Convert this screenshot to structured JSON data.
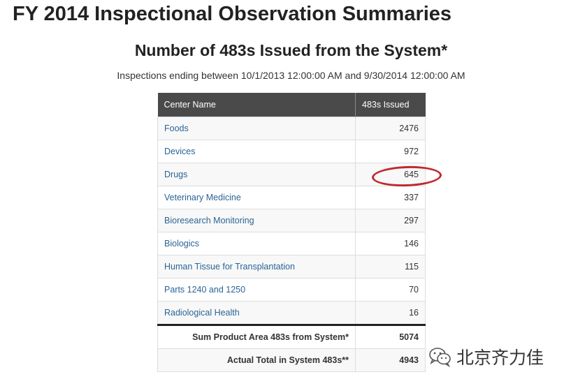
{
  "page": {
    "title": "FY 2014 Inspectional Observation Summaries"
  },
  "report": {
    "title": "Number of 483s Issued from the System*",
    "date_range": "Inspections ending between 10/1/2013 12:00:00 AM and 9/30/2014 12:00:00 AM"
  },
  "table": {
    "headers": [
      "Center Name",
      "483s Issued"
    ],
    "rows": [
      {
        "name": "Foods",
        "issued": "2476"
      },
      {
        "name": "Devices",
        "issued": "972"
      },
      {
        "name": "Drugs",
        "issued": "645"
      },
      {
        "name": "Veterinary Medicine",
        "issued": "337"
      },
      {
        "name": "Bioresearch Monitoring",
        "issued": "297"
      },
      {
        "name": "Biologics",
        "issued": "146"
      },
      {
        "name": "Human Tissue for Transplantation",
        "issued": "115"
      },
      {
        "name": "Parts 1240 and 1250",
        "issued": "70"
      },
      {
        "name": "Radiological Health",
        "issued": "16"
      }
    ],
    "footer": [
      {
        "label": "Sum Product Area 483s from System*",
        "value": "5074"
      },
      {
        "label": "Actual Total in System 483s**",
        "value": "4943"
      }
    ]
  },
  "highlight": {
    "row": "Drugs",
    "color": "#c0282e"
  },
  "watermark": {
    "icon": "wechat-icon",
    "text": "北京齐力佳"
  },
  "colors": {
    "header_bg": "#4a4a4a",
    "link": "#2a6496"
  }
}
